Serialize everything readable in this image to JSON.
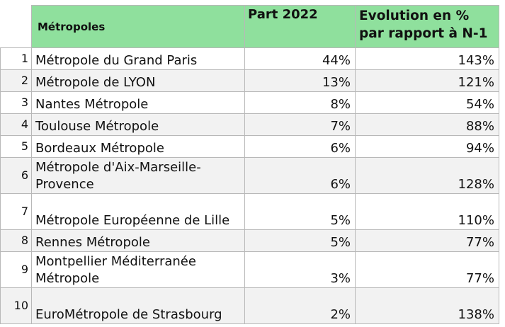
{
  "table": {
    "headers": {
      "name": "Métropoles",
      "part": "Part 2022",
      "evolution": "Evolution en % par rapport à N-1"
    },
    "rows": [
      {
        "idx": "1",
        "name": "Métropole du Grand Paris",
        "part": "44%",
        "evolution": "143%"
      },
      {
        "idx": "2",
        "name": "Métropole de LYON",
        "part": "13%",
        "evolution": "121%"
      },
      {
        "idx": "3",
        "name": "Nantes Métropole",
        "part": "8%",
        "evolution": "54%"
      },
      {
        "idx": "4",
        "name": "Toulouse Métropole",
        "part": "7%",
        "evolution": "88%"
      },
      {
        "idx": "5",
        "name": "Bordeaux Métropole",
        "part": "6%",
        "evolution": "94%"
      },
      {
        "idx": "6",
        "name": "Métropole d'Aix-Marseille-Provence",
        "part": "6%",
        "evolution": "128%"
      },
      {
        "idx": "7",
        "name": "Métropole Européenne de Lille",
        "part": "5%",
        "evolution": "110%"
      },
      {
        "idx": "8",
        "name": "Rennes Métropole",
        "part": "5%",
        "evolution": "77%"
      },
      {
        "idx": "9",
        "name": "Montpellier Méditerranée Métropole",
        "part": "3%",
        "evolution": "77%"
      },
      {
        "idx": "10",
        "name": "EuroMétropole de Strasbourg",
        "part": "2%",
        "evolution": "138%"
      }
    ]
  },
  "colors": {
    "header_green": "#8fe09d",
    "row_stripe": "#f2f2f2",
    "grid": "#b8b8b8"
  }
}
